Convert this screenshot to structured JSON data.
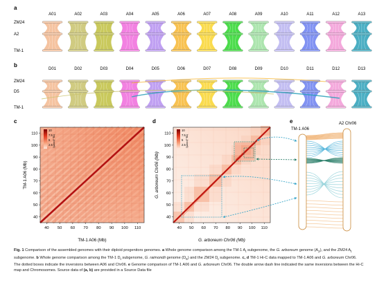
{
  "panels": {
    "a": {
      "letter": "a",
      "row_labels": [
        "ZM24",
        "A2",
        "TM-1"
      ],
      "chromosomes": [
        "A01",
        "A02",
        "A03",
        "A04",
        "A05",
        "A06",
        "A07",
        "A08",
        "A09",
        "A10",
        "A11",
        "A12",
        "A13"
      ],
      "colors": [
        "#f3b98f",
        "#c8c26b",
        "#bfbf3f",
        "#f06bdc",
        "#b58ff0",
        "#f7b733",
        "#f9d52f",
        "#2bd62b",
        "#9ee0a0",
        "#b9b3f0",
        "#6b7ff0",
        "#f29ad6",
        "#2aa0b8"
      ]
    },
    "b": {
      "letter": "b",
      "row_labels": [
        "ZM24",
        "D5",
        "TM-1"
      ],
      "chromosomes": [
        "D01",
        "D02",
        "D03",
        "D04",
        "D05",
        "D06",
        "D07",
        "D08",
        "D09",
        "D10",
        "D11",
        "D12",
        "D13"
      ],
      "colors": [
        "#f3b98f",
        "#c8c26b",
        "#bfbf3f",
        "#f06bdc",
        "#b58ff0",
        "#f7b733",
        "#f9d52f",
        "#2bd62b",
        "#9ee0a0",
        "#b9b3f0",
        "#6b7ff0",
        "#f29ad6",
        "#2aa0b8"
      ]
    },
    "c": {
      "letter": "c",
      "xlabel": "TM-1 A06 (Mb)",
      "ylabel": "TM-1 A06 (Mb)",
      "x_ticks": [
        "40",
        "50",
        "60",
        "70",
        "80",
        "90",
        "100",
        "110"
      ],
      "y_ticks": [
        "40",
        "50",
        "60",
        "70",
        "80",
        "90",
        "100",
        "110"
      ],
      "legend_title": "log₁₀(count)",
      "legend_ticks": [
        "10",
        "7.5",
        "5",
        "2.5"
      ]
    },
    "d": {
      "letter": "d",
      "xlabel": "G. arboreum Chr06 (Mb)",
      "ylabel": "G. arboreum Chr06 (Mb)",
      "x_ticks": [
        "40",
        "50",
        "60",
        "70",
        "80",
        "90",
        "100",
        "110"
      ],
      "y_ticks": [
        "40",
        "50",
        "60",
        "70",
        "80",
        "90",
        "100",
        "110"
      ],
      "legend_title": "log₁₀(count)",
      "legend_ticks": [
        "10",
        "7.5",
        "5",
        "2.5"
      ]
    },
    "e": {
      "letter": "e",
      "left_label": "TM-1 A06",
      "right_label": "A2 Chr06"
    }
  },
  "caption": {
    "fig": "Fig. 1",
    "title": "Comparison of the assembled genomes with their diploid progenitors genomes.",
    "a_label": "a",
    "a_text_1": "Whole genome comparison among the TM-1 A",
    "a_sub_1": "t",
    "a_text_2": "subgenome, the",
    "a_genus": "G.",
    "a_species": "arboreum",
    "a_text_3": "genome (A",
    "a_sub_2": "2",
    "a_text_4": "), and the ZM24 A",
    "a_sub_3": "t",
    "a_text_5": "subgenome.",
    "b_label": "b",
    "b_text_1": "Whole genome comparison among the TM-1 D",
    "b_sub_1": "t",
    "b_text_2": "subgenome,",
    "b_species": "G. raimondii",
    "b_text_3": "genome (D",
    "b_sub_2": "5",
    "b_text_4": ") and the ZM24 D",
    "b_sub_3": "t",
    "b_text_5": "subgenome.",
    "cd_label": "c, d",
    "cd_text_1": "TM-1 Hi-C data mapped to TM-1 A06 and",
    "cd_species": "G. arboreum",
    "cd_text_2": "Chr06. The dotted boxes indicate the inversions between A06 and Chr06.",
    "e_label": "e",
    "e_text": "Genome comparison of TM-1 A06 and",
    "e_species": "G. arboreum",
    "e_text_2": "Chr06. The double arrow dash line indicated the same inversions between the Hi-C map and Chromosomes. Source data of",
    "src_ref": "(a, b)",
    "src_text": "are provided in a Source Data file"
  }
}
